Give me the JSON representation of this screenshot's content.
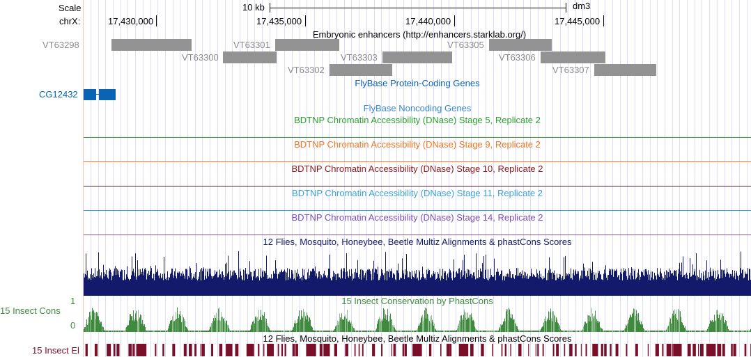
{
  "scale": {
    "label": "Scale",
    "bar_label": "10 kb",
    "assembly": "dm3"
  },
  "ruler": {
    "chrom": "chrX:",
    "ticks": [
      "17,430,000",
      "17,435,000",
      "17,440,000",
      "17,445,000"
    ]
  },
  "enhancers": {
    "title": "Embryonic enhancers (http://enhancers.starklab.org/)",
    "items": [
      "VT63298",
      "VT63300",
      "VT63301",
      "VT63302",
      "VT63303",
      "VT63305",
      "VT63306",
      "VT63307"
    ]
  },
  "genes": {
    "title": "FlyBase Protein-Coding Genes",
    "item": "CG12432",
    "color": "#0b63b3"
  },
  "noncoding": {
    "title": "FlyBase Noncoding Genes"
  },
  "dnase": [
    {
      "title": "BDTNP Chromatin Accessibility (DNase) Stage 5, Replicate 2",
      "color": "#2ca02c"
    },
    {
      "title": "BDTNP Chromatin Accessibility (DNase) Stage 9, Replicate 2",
      "color": "#ef7621"
    },
    {
      "title": "BDTNP Chromatin Accessibility (DNase) Stage 10, Replicate 2",
      "color": "#8c1a1a"
    },
    {
      "title": "BDTNP Chromatin Accessibility (DNase) Stage 11, Replicate 2",
      "color": "#3aa3d4"
    },
    {
      "title": "BDTNP Chromatin Accessibility (DNase) Stage 14, Replicate 2",
      "color": "#7b4fb3"
    }
  ],
  "multiz": {
    "title": "12 Flies, Mosquito, Honeybee, Beetle Multiz Alignments & phastCons Scores",
    "color": "#131a6b"
  },
  "cons": {
    "title": "15 Insect Conservation by PhastCons",
    "label": "15 Insect Cons",
    "ymax": "1",
    "ymin": "0",
    "color": "#3f8a3f"
  },
  "elements": {
    "title": "12 Flies, Mosquito, Honeybee, Beetle Multiz Alignments & phastCons Scores",
    "label": "15 Insect El",
    "color": "#7a0f2a"
  }
}
